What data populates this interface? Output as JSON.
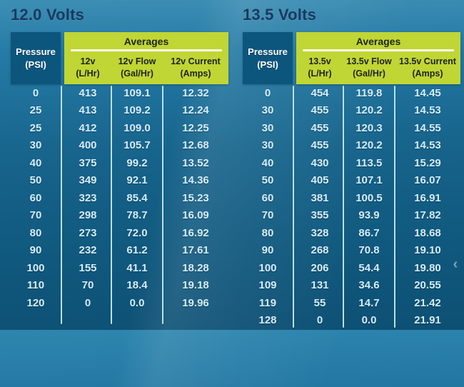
{
  "colors": {
    "background_top": "#2e86af",
    "background_bottom": "#0d5074",
    "pressure_header_blue": "#0c567e",
    "averages_green": "#c0d634",
    "title_navy": "#19395f",
    "data_text": "#d6eefb",
    "divider_light_blue": "#b9e2f3"
  },
  "chevron_left_glyph": "‹",
  "chart_data": [
    {
      "type": "table",
      "title": "12.0 Volts",
      "corner_header": [
        "Pressure",
        "(PSI)"
      ],
      "group_header": "Averages",
      "columns": [
        [
          "12v",
          "(L/Hr)"
        ],
        [
          "12v Flow",
          "(Gal/Hr)"
        ],
        [
          "12v Current",
          "(Amps)"
        ]
      ],
      "columns_full": [
        "Pressure (PSI)",
        "12v (L/Hr)",
        "12v Flow (Gal/Hr)",
        "12v Current (Amps)"
      ],
      "rows": [
        [
          "0",
          "413",
          "109.1",
          "12.32"
        ],
        [
          "25",
          "413",
          "109.2",
          "12.24"
        ],
        [
          "25",
          "412",
          "109.0",
          "12.25"
        ],
        [
          "30",
          "400",
          "105.7",
          "12.68"
        ],
        [
          "40",
          "375",
          "99.2",
          "13.52"
        ],
        [
          "50",
          "349",
          "92.1",
          "14.36"
        ],
        [
          "60",
          "323",
          "85.4",
          "15.23"
        ],
        [
          "70",
          "298",
          "78.7",
          "16.09"
        ],
        [
          "80",
          "273",
          "72.0",
          "16.92"
        ],
        [
          "90",
          "232",
          "61.2",
          "17.61"
        ],
        [
          "100",
          "155",
          "41.1",
          "18.28"
        ],
        [
          "110",
          "70",
          "18.4",
          "19.18"
        ],
        [
          "120",
          "0",
          "0.0",
          "19.96"
        ]
      ]
    },
    {
      "type": "table",
      "title": "13.5 Volts",
      "corner_header": [
        "Pressure",
        "(PSI)"
      ],
      "group_header": "Averages",
      "columns": [
        [
          "13.5v",
          "(L/Hr)"
        ],
        [
          "13.5v Flow",
          "(Gal/Hr)"
        ],
        [
          "13.5v Current",
          "(Amps)"
        ]
      ],
      "columns_full": [
        "Pressure (PSI)",
        "13.5v (L/Hr)",
        "13.5v Flow (Gal/Hr)",
        "13.5v Current (Amps)"
      ],
      "rows": [
        [
          "0",
          "454",
          "119.8",
          "14.45"
        ],
        [
          "30",
          "455",
          "120.2",
          "14.53"
        ],
        [
          "30",
          "455",
          "120.3",
          "14.55"
        ],
        [
          "30",
          "455",
          "120.2",
          "14.53"
        ],
        [
          "40",
          "430",
          "113.5",
          "15.29"
        ],
        [
          "50",
          "405",
          "107.1",
          "16.07"
        ],
        [
          "60",
          "381",
          "100.5",
          "16.91"
        ],
        [
          "70",
          "355",
          "93.9",
          "17.82"
        ],
        [
          "80",
          "328",
          "86.7",
          "18.68"
        ],
        [
          "90",
          "268",
          "70.8",
          "19.10"
        ],
        [
          "100",
          "206",
          "54.4",
          "19.80"
        ],
        [
          "109",
          "131",
          "34.6",
          "20.55"
        ],
        [
          "119",
          "55",
          "14.7",
          "21.42"
        ],
        [
          "128",
          "0",
          "0.0",
          "21.91"
        ]
      ]
    }
  ]
}
